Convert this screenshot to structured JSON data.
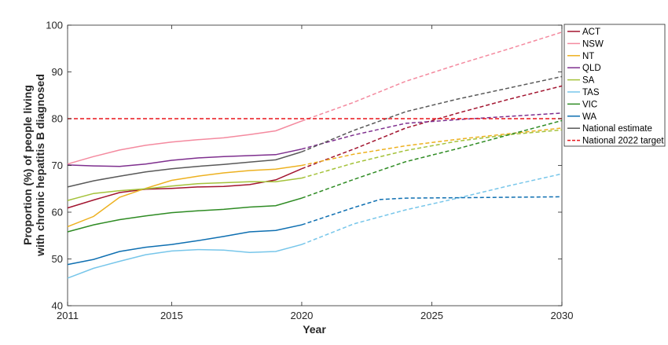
{
  "chart_data": {
    "type": "line",
    "title": "",
    "xlabel": "Year",
    "ylabel_lines": [
      "Proportion (%) of people living",
      "with chronic hepatitis B diagnosed"
    ],
    "xlim": [
      2011,
      2030
    ],
    "ylim": [
      40,
      100
    ],
    "xticks": [
      2011,
      2015,
      2020,
      2025,
      2030
    ],
    "yticks": [
      40,
      50,
      60,
      70,
      80,
      90,
      100
    ],
    "grid": false,
    "legend_position": "top-right outside",
    "series": [
      {
        "name": "ACT",
        "color": "#a2142f",
        "observed": [
          [
            2011,
            60.9
          ],
          [
            2012,
            62.6
          ],
          [
            2013,
            64.2
          ],
          [
            2014,
            64.9
          ],
          [
            2015,
            65.1
          ],
          [
            2016,
            65.4
          ],
          [
            2017,
            65.5
          ],
          [
            2018,
            65.9
          ],
          [
            2019,
            66.9
          ],
          [
            2020,
            69.3
          ]
        ],
        "projected": [
          [
            2020,
            69.3
          ],
          [
            2022,
            73.5
          ],
          [
            2024,
            78.0
          ],
          [
            2026,
            81.2
          ],
          [
            2028,
            84.2
          ],
          [
            2030,
            87.0
          ]
        ]
      },
      {
        "name": "NSW",
        "color": "#f48a9f",
        "observed": [
          [
            2011,
            70.3
          ],
          [
            2012,
            71.9
          ],
          [
            2013,
            73.3
          ],
          [
            2014,
            74.3
          ],
          [
            2015,
            75.0
          ],
          [
            2016,
            75.5
          ],
          [
            2017,
            75.9
          ],
          [
            2018,
            76.6
          ],
          [
            2019,
            77.4
          ],
          [
            2020,
            79.5
          ]
        ],
        "projected": [
          [
            2020,
            79.5
          ],
          [
            2022,
            83.5
          ],
          [
            2024,
            88.0
          ],
          [
            2026,
            91.6
          ],
          [
            2028,
            95.0
          ],
          [
            2030,
            98.5
          ]
        ]
      },
      {
        "name": "NT",
        "color": "#edb120",
        "observed": [
          [
            2011,
            56.9
          ],
          [
            2012,
            59.1
          ],
          [
            2013,
            63.2
          ],
          [
            2014,
            65.1
          ],
          [
            2015,
            66.8
          ],
          [
            2016,
            67.7
          ],
          [
            2017,
            68.4
          ],
          [
            2018,
            68.9
          ],
          [
            2019,
            69.2
          ],
          [
            2020,
            70.0
          ]
        ],
        "projected": [
          [
            2020,
            70.0
          ],
          [
            2022,
            72.4
          ],
          [
            2024,
            74.2
          ],
          [
            2026,
            75.6
          ],
          [
            2028,
            76.8
          ],
          [
            2030,
            78.0
          ]
        ]
      },
      {
        "name": "QLD",
        "color": "#7e2f8e",
        "observed": [
          [
            2011,
            70.1
          ],
          [
            2012,
            69.9
          ],
          [
            2013,
            69.8
          ],
          [
            2014,
            70.3
          ],
          [
            2015,
            71.1
          ],
          [
            2016,
            71.6
          ],
          [
            2017,
            71.9
          ],
          [
            2018,
            72.1
          ],
          [
            2019,
            72.3
          ],
          [
            2020,
            73.5
          ]
        ],
        "projected": [
          [
            2020,
            73.5
          ],
          [
            2022,
            76.5
          ],
          [
            2024,
            79.0
          ],
          [
            2026,
            79.8
          ],
          [
            2028,
            80.5
          ],
          [
            2030,
            81.2
          ]
        ]
      },
      {
        "name": "SA",
        "color": "#a4c23a",
        "observed": [
          [
            2011,
            62.5
          ],
          [
            2012,
            64.0
          ],
          [
            2013,
            64.6
          ],
          [
            2014,
            65.0
          ],
          [
            2015,
            65.6
          ],
          [
            2016,
            66.1
          ],
          [
            2017,
            66.3
          ],
          [
            2018,
            66.5
          ],
          [
            2019,
            66.5
          ],
          [
            2020,
            67.3
          ]
        ],
        "projected": [
          [
            2020,
            67.3
          ],
          [
            2022,
            70.5
          ],
          [
            2024,
            73.2
          ],
          [
            2026,
            75.2
          ],
          [
            2028,
            76.6
          ],
          [
            2030,
            77.6
          ]
        ]
      },
      {
        "name": "TAS",
        "color": "#77c6ea",
        "observed": [
          [
            2011,
            45.9
          ],
          [
            2012,
            48.0
          ],
          [
            2013,
            49.5
          ],
          [
            2014,
            50.9
          ],
          [
            2015,
            51.7
          ],
          [
            2016,
            52.0
          ],
          [
            2017,
            51.9
          ],
          [
            2018,
            51.4
          ],
          [
            2019,
            51.6
          ],
          [
            2020,
            53.1
          ]
        ],
        "projected": [
          [
            2020,
            53.1
          ],
          [
            2022,
            57.5
          ],
          [
            2024,
            60.5
          ],
          [
            2026,
            63.0
          ],
          [
            2028,
            65.7
          ],
          [
            2030,
            68.2
          ]
        ]
      },
      {
        "name": "VIC",
        "color": "#2e8b23",
        "observed": [
          [
            2011,
            55.8
          ],
          [
            2012,
            57.3
          ],
          [
            2013,
            58.4
          ],
          [
            2014,
            59.2
          ],
          [
            2015,
            59.9
          ],
          [
            2016,
            60.3
          ],
          [
            2017,
            60.6
          ],
          [
            2018,
            61.1
          ],
          [
            2019,
            61.4
          ],
          [
            2020,
            63.0
          ]
        ],
        "projected": [
          [
            2020,
            63.0
          ],
          [
            2022,
            67.0
          ],
          [
            2024,
            70.8
          ],
          [
            2026,
            73.6
          ],
          [
            2028,
            76.6
          ],
          [
            2030,
            79.6
          ]
        ]
      },
      {
        "name": "WA",
        "color": "#0e6fb1",
        "observed": [
          [
            2011,
            48.8
          ],
          [
            2012,
            49.9
          ],
          [
            2013,
            51.6
          ],
          [
            2014,
            52.5
          ],
          [
            2015,
            53.1
          ],
          [
            2016,
            53.9
          ],
          [
            2017,
            54.8
          ],
          [
            2018,
            55.8
          ],
          [
            2019,
            56.1
          ],
          [
            2020,
            57.3
          ]
        ],
        "projected": [
          [
            2020,
            57.3
          ],
          [
            2022,
            61.0
          ],
          [
            2023,
            62.7
          ],
          [
            2024,
            63.0
          ],
          [
            2026,
            63.1
          ],
          [
            2028,
            63.2
          ],
          [
            2030,
            63.3
          ]
        ]
      },
      {
        "name": "National estimate",
        "color": "#595959",
        "observed": [
          [
            2011,
            65.4
          ],
          [
            2012,
            66.7
          ],
          [
            2013,
            67.7
          ],
          [
            2014,
            68.6
          ],
          [
            2015,
            69.3
          ],
          [
            2016,
            69.8
          ],
          [
            2017,
            70.2
          ],
          [
            2018,
            70.7
          ],
          [
            2019,
            71.2
          ],
          [
            2020,
            72.9
          ]
        ],
        "projected": [
          [
            2020,
            72.9
          ],
          [
            2022,
            77.5
          ],
          [
            2024,
            81.5
          ],
          [
            2026,
            84.2
          ],
          [
            2028,
            86.6
          ],
          [
            2030,
            89.0
          ]
        ]
      },
      {
        "name": "National 2022 target",
        "color": "#e8151b",
        "observed": [],
        "projected": [
          [
            2011,
            80
          ],
          [
            2030,
            80
          ]
        ]
      }
    ]
  }
}
